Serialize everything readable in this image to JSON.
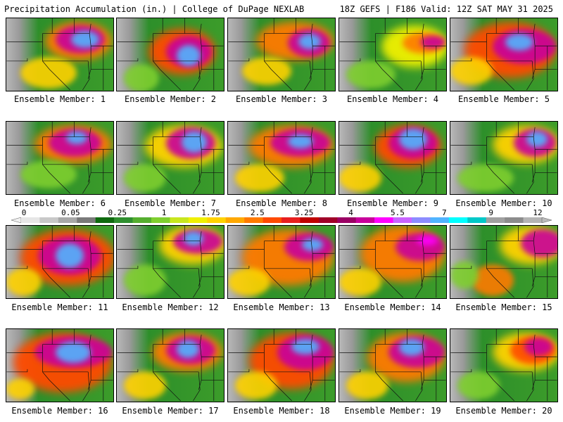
{
  "header": {
    "title": "Precipitation Accumulation (in.) | College of DuPage NEXLAB",
    "valid": "18Z GEFS | F186 Valid: 12Z SAT MAY 31 2025"
  },
  "colorbar": {
    "ticks": [
      "0",
      "0.05",
      "0.25",
      "1",
      "1.75",
      "2.5",
      "3.25",
      "4",
      "5.5",
      "7",
      "9",
      "12"
    ],
    "colors": [
      "#e6e6e6",
      "#c8c8c8",
      "#a8a8a8",
      "#7a7a7a",
      "#0f6a0f",
      "#2f8f2f",
      "#55ae2f",
      "#7fcf2f",
      "#c8e61e",
      "#f0f000",
      "#ffd200",
      "#ffa800",
      "#ff7a00",
      "#ff4a00",
      "#e81e1e",
      "#c00000",
      "#a00028",
      "#9b0064",
      "#c8009b",
      "#ff00ff",
      "#c864ff",
      "#8c8cff",
      "#50b4ff",
      "#00ffff",
      "#00c8c8",
      "#a0a0a0",
      "#8c8c8c",
      "#b4b4b4"
    ]
  },
  "members": [
    {
      "label": "Ensemble Member: 1"
    },
    {
      "label": "Ensemble Member: 2"
    },
    {
      "label": "Ensemble Member: 3"
    },
    {
      "label": "Ensemble Member: 4"
    },
    {
      "label": "Ensemble Member: 5"
    },
    {
      "label": "Ensemble Member: 6"
    },
    {
      "label": "Ensemble Member: 7"
    },
    {
      "label": "Ensemble Member: 8"
    },
    {
      "label": "Ensemble Member: 9"
    },
    {
      "label": "Ensemble Member: 10"
    },
    {
      "label": "Ensemble Member: 11"
    },
    {
      "label": "Ensemble Member: 12"
    },
    {
      "label": "Ensemble Member: 13"
    },
    {
      "label": "Ensemble Member: 14"
    },
    {
      "label": "Ensemble Member: 15"
    },
    {
      "label": "Ensemble Member: 16"
    },
    {
      "label": "Ensemble Member: 17"
    },
    {
      "label": "Ensemble Member: 18"
    },
    {
      "label": "Ensemble Member: 19"
    },
    {
      "label": "Ensemble Member: 20"
    }
  ]
}
